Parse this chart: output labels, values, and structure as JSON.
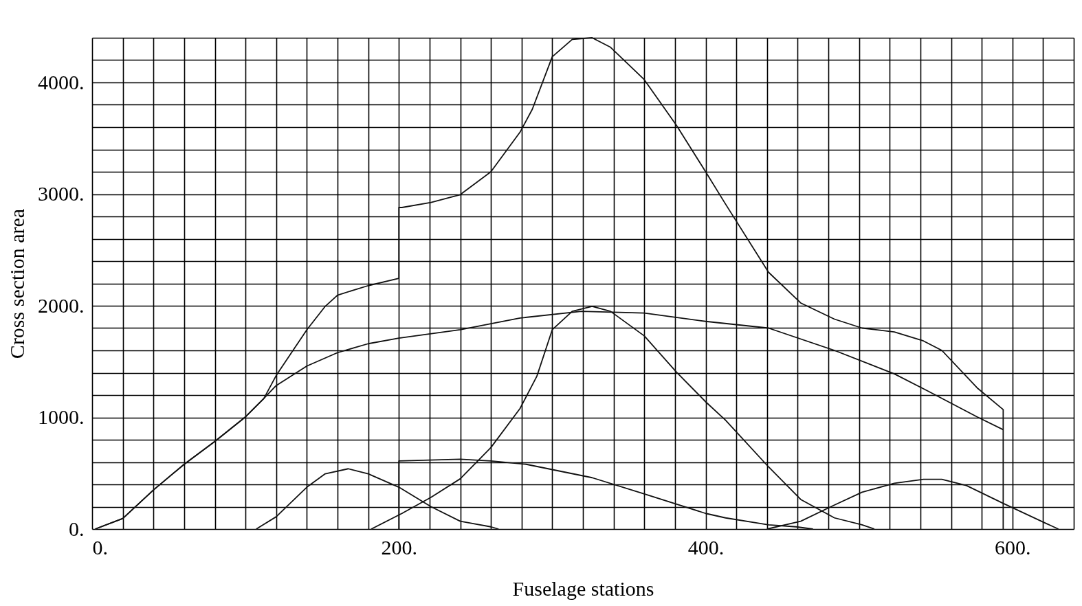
{
  "chart_data": {
    "type": "line",
    "xlabel": "Fuselage stations",
    "ylabel": "Cross section area",
    "xlim": [
      0,
      640
    ],
    "ylim": [
      0,
      4400
    ],
    "grid": true,
    "marker": "none",
    "line_style": "solid",
    "xticks": [
      {
        "value": 0,
        "label": "0."
      },
      {
        "value": 20,
        "label": null
      },
      {
        "value": 40,
        "label": null
      },
      {
        "value": 60,
        "label": null
      },
      {
        "value": 80,
        "label": null
      },
      {
        "value": 100,
        "label": null
      },
      {
        "value": 120,
        "label": null
      },
      {
        "value": 140,
        "label": null
      },
      {
        "value": 160,
        "label": null
      },
      {
        "value": 180,
        "label": null
      },
      {
        "value": 200,
        "label": "200."
      },
      {
        "value": 220,
        "label": null
      },
      {
        "value": 240,
        "label": null
      },
      {
        "value": 260,
        "label": null
      },
      {
        "value": 280,
        "label": null
      },
      {
        "value": 300,
        "label": null
      },
      {
        "value": 320,
        "label": null
      },
      {
        "value": 340,
        "label": null
      },
      {
        "value": 360,
        "label": null
      },
      {
        "value": 380,
        "label": null
      },
      {
        "value": 400,
        "label": "400."
      },
      {
        "value": 420,
        "label": null
      },
      {
        "value": 440,
        "label": null
      },
      {
        "value": 460,
        "label": null
      },
      {
        "value": 480,
        "label": null
      },
      {
        "value": 500,
        "label": null
      },
      {
        "value": 520,
        "label": null
      },
      {
        "value": 540,
        "label": null
      },
      {
        "value": 560,
        "label": null
      },
      {
        "value": 580,
        "label": null
      },
      {
        "value": 600,
        "label": "600."
      },
      {
        "value": 620,
        "label": null
      },
      {
        "value": 640,
        "label": null
      }
    ],
    "yticks": [
      {
        "value": 0,
        "label": "0."
      },
      {
        "value": 200,
        "label": null
      },
      {
        "value": 400,
        "label": null
      },
      {
        "value": 600,
        "label": null
      },
      {
        "value": 800,
        "label": null
      },
      {
        "value": 1000,
        "label": "1000."
      },
      {
        "value": 1200,
        "label": null
      },
      {
        "value": 1400,
        "label": null
      },
      {
        "value": 1600,
        "label": null
      },
      {
        "value": 1800,
        "label": null
      },
      {
        "value": 2000,
        "label": "2000."
      },
      {
        "value": 2200,
        "label": null
      },
      {
        "value": 2400,
        "label": null
      },
      {
        "value": 2600,
        "label": null
      },
      {
        "value": 2800,
        "label": null
      },
      {
        "value": 3000,
        "label": "3000."
      },
      {
        "value": 3200,
        "label": null
      },
      {
        "value": 3400,
        "label": null
      },
      {
        "value": 3600,
        "label": null
      },
      {
        "value": 3800,
        "label": null
      },
      {
        "value": 4000,
        "label": "4000."
      },
      {
        "value": 4200,
        "label": null
      },
      {
        "value": 4400,
        "label": null
      }
    ],
    "series": [
      {
        "color": "#111111",
        "x": [
          2,
          20,
          40,
          60,
          80,
          100,
          112,
          120,
          140,
          152,
          160,
          180,
          200,
          200,
          202,
          221,
          240,
          260,
          279,
          287,
          300,
          313,
          326,
          338,
          360,
          381,
          400,
          413,
          441,
          462,
          484,
          502,
          523,
          542,
          554,
          577,
          594,
          594
        ],
        "values": [
          0,
          95,
          350,
          580,
          785,
          1005,
          1170,
          1375,
          1785,
          1995,
          2095,
          2180,
          2245,
          2880,
          2880,
          2925,
          2995,
          3200,
          3555,
          3760,
          4230,
          4385,
          4400,
          4315,
          4025,
          3615,
          3200,
          2910,
          2300,
          2025,
          1880,
          1800,
          1765,
          1685,
          1600,
          1265,
          1070,
          0
        ]
      },
      {
        "color": "#111111",
        "x": [
          2,
          20,
          40,
          60,
          80,
          100,
          112,
          120,
          140,
          160,
          180,
          200,
          240,
          279,
          319,
          360,
          400,
          441,
          484,
          523,
          545,
          577,
          594
        ],
        "values": [
          0,
          95,
          350,
          580,
          785,
          1005,
          1170,
          1285,
          1460,
          1580,
          1660,
          1710,
          1785,
          1890,
          1950,
          1935,
          1860,
          1800,
          1600,
          1390,
          1235,
          1005,
          890
        ]
      },
      {
        "color": "#111111",
        "x": [
          107,
          120,
          140,
          152,
          167,
          180,
          200,
          221,
          240,
          260,
          265
        ],
        "values": [
          0,
          110,
          375,
          495,
          540,
          495,
          375,
          200,
          70,
          20,
          0
        ]
      },
      {
        "color": "#111111",
        "x": [
          182,
          202,
          221,
          240,
          260,
          279,
          290,
          300,
          313,
          326,
          338,
          360,
          381,
          400,
          413,
          441,
          462,
          484,
          502,
          510
        ],
        "values": [
          0,
          140,
          285,
          450,
          730,
          1080,
          1370,
          1785,
          1950,
          1995,
          1950,
          1730,
          1405,
          1140,
          975,
          557,
          265,
          100,
          38,
          0
        ]
      },
      {
        "color": "#111111",
        "x": [
          200,
          200,
          240,
          260,
          283,
          326,
          360,
          400,
          413,
          441,
          459,
          470
        ],
        "values": [
          0,
          610,
          625,
          610,
          580,
          460,
          315,
          140,
          100,
          38,
          20,
          0
        ]
      },
      {
        "color": "#111111",
        "x": [
          440,
          462,
          484,
          502,
          523,
          542,
          554,
          570,
          594,
          622,
          630
        ],
        "values": [
          0,
          70,
          215,
          330,
          410,
          445,
          445,
          390,
          230,
          50,
          0
        ]
      }
    ]
  }
}
